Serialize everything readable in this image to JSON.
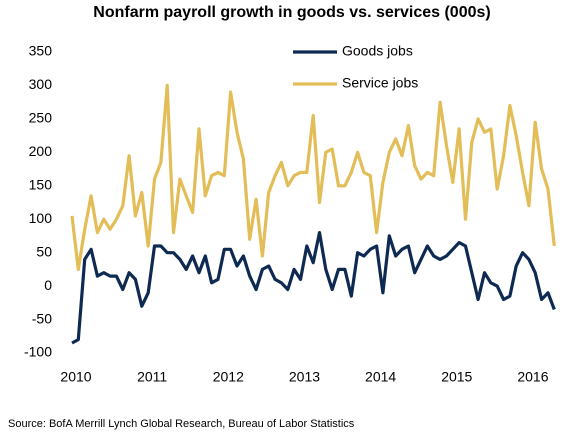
{
  "chart_data": {
    "type": "line",
    "title": "Nonfarm payroll growth in goods vs. services (000s)",
    "source": "Source: BofA Merrill Lynch Global Research, Bureau of Labor Statistics",
    "x": [
      2010,
      2010.083,
      2010.167,
      2010.25,
      2010.333,
      2010.417,
      2010.5,
      2010.583,
      2010.667,
      2010.75,
      2010.833,
      2010.917,
      2011,
      2011.083,
      2011.167,
      2011.25,
      2011.333,
      2011.417,
      2011.5,
      2011.583,
      2011.667,
      2011.75,
      2011.833,
      2011.917,
      2012,
      2012.083,
      2012.167,
      2012.25,
      2012.333,
      2012.417,
      2012.5,
      2012.583,
      2012.667,
      2012.75,
      2012.833,
      2012.917,
      2013,
      2013.083,
      2013.167,
      2013.25,
      2013.333,
      2013.417,
      2013.5,
      2013.583,
      2013.667,
      2013.75,
      2013.833,
      2013.917,
      2014,
      2014.083,
      2014.167,
      2014.25,
      2014.333,
      2014.417,
      2014.5,
      2014.583,
      2014.667,
      2014.75,
      2014.833,
      2014.917,
      2015,
      2015.083,
      2015.167,
      2015.25,
      2015.333,
      2015.417,
      2015.5,
      2015.583,
      2015.667,
      2015.75,
      2015.833,
      2015.917,
      2016,
      2016.083,
      2016.167,
      2016.25,
      2016.333
    ],
    "series": [
      {
        "name": "Goods jobs",
        "color": "#0e2a52",
        "values": [
          -85,
          -80,
          40,
          55,
          15,
          20,
          15,
          15,
          -5,
          20,
          10,
          -30,
          -10,
          60,
          60,
          50,
          50,
          40,
          25,
          45,
          20,
          45,
          5,
          10,
          55,
          55,
          30,
          45,
          15,
          -5,
          25,
          30,
          10,
          5,
          -5,
          25,
          10,
          60,
          35,
          80,
          25,
          -5,
          25,
          25,
          -15,
          50,
          45,
          55,
          60,
          -10,
          75,
          45,
          55,
          60,
          20,
          40,
          60,
          45,
          40,
          45,
          55,
          65,
          60,
          20,
          -20,
          20,
          5,
          0,
          -20,
          -15,
          30,
          50,
          40,
          20,
          -20,
          -10,
          -35
        ]
      },
      {
        "name": "Service jobs",
        "color": "#e2bd58",
        "values": [
          105,
          25,
          85,
          135,
          80,
          100,
          85,
          100,
          120,
          195,
          105,
          140,
          60,
          160,
          185,
          300,
          80,
          160,
          135,
          110,
          235,
          135,
          165,
          170,
          165,
          290,
          230,
          190,
          70,
          130,
          45,
          140,
          165,
          185,
          150,
          165,
          170,
          170,
          255,
          125,
          200,
          205,
          150,
          150,
          170,
          200,
          170,
          165,
          80,
          155,
          200,
          220,
          195,
          240,
          180,
          160,
          170,
          165,
          275,
          210,
          155,
          235,
          100,
          215,
          250,
          230,
          235,
          145,
          195,
          270,
          225,
          170,
          120,
          245,
          175,
          145,
          60
        ]
      }
    ],
    "xlim": [
      2009.9,
      2016.5
    ],
    "xticks": [
      2010,
      2011,
      2012,
      2013,
      2014,
      2015,
      2016
    ],
    "ylim": [
      -100,
      350
    ],
    "yticks": [
      -100,
      -50,
      0,
      50,
      100,
      150,
      200,
      250,
      300,
      350
    ],
    "grid": false,
    "legend": "top"
  }
}
